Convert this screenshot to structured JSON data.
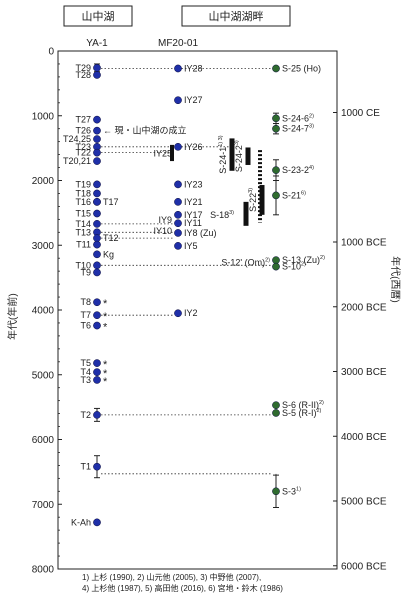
{
  "chart_data": {
    "type": "scatter",
    "headers": {
      "left": "山中湖",
      "right": "山中湖湖畔"
    },
    "columns": {
      "ya": "YA-1",
      "mf": "MF20-01"
    },
    "ylabel_left": "年代(年前)",
    "ylabel_right": "年代(西暦)",
    "ylim": [
      0,
      8000
    ],
    "left_ticks": [
      0,
      1000,
      2000,
      3000,
      4000,
      5000,
      6000,
      7000,
      8000
    ],
    "right_ticks": [
      {
        "bp": 950,
        "label": "1000 CE"
      },
      {
        "bp": 2950,
        "label": "1000 BCE"
      },
      {
        "bp": 3950,
        "label": "2000 BCE"
      },
      {
        "bp": 4950,
        "label": "3000 BCE"
      },
      {
        "bp": 5950,
        "label": "4000 BCE"
      },
      {
        "bp": 6950,
        "label": "5000 BCE"
      },
      {
        "bp": 7950,
        "label": "6000 BCE"
      }
    ],
    "ya1_points": [
      {
        "label": "T29",
        "y": 260,
        "err": 60
      },
      {
        "label": "T28",
        "y": 370
      },
      {
        "label": "T27",
        "y": 1060
      },
      {
        "label": "T26",
        "y": 1230
      },
      {
        "label": "T24,25",
        "y": 1360
      },
      {
        "label": "T23",
        "y": 1480
      },
      {
        "label": "T22",
        "y": 1570
      },
      {
        "label": "T20,21",
        "y": 1700
      },
      {
        "label": "T19",
        "y": 2060
      },
      {
        "label": "T18",
        "y": 2200
      },
      {
        "label": "T16",
        "y": 2330
      },
      {
        "label": "T17",
        "y": 2330,
        "label_right": true
      },
      {
        "label": "T15",
        "y": 2510
      },
      {
        "label": "T14",
        "y": 2670
      },
      {
        "label": "T13",
        "y": 2800
      },
      {
        "label": "T12",
        "y": 2890,
        "label_right": true
      },
      {
        "label": "T11",
        "y": 2990
      },
      {
        "label": "Kg",
        "y": 3140,
        "label_right": true
      },
      {
        "label": "T10",
        "y": 3310
      },
      {
        "label": "T9",
        "y": 3420
      },
      {
        "label": "T8",
        "y": 3880,
        "star": true
      },
      {
        "label": "T7",
        "y": 4080,
        "star": true
      },
      {
        "label": "T6",
        "y": 4240,
        "star": true
      },
      {
        "label": "T5",
        "y": 4820,
        "star": true
      },
      {
        "label": "T4",
        "y": 4960,
        "star": true
      },
      {
        "label": "T3",
        "y": 5080,
        "star": true
      },
      {
        "label": "T2",
        "y": 5620,
        "err": 100
      },
      {
        "label": "T1",
        "y": 6420,
        "err": 170
      },
      {
        "label": "K-Ah",
        "y": 7280
      }
    ],
    "mf20_points": [
      {
        "label": "IY28",
        "y": 270
      },
      {
        "label": "IY27",
        "y": 760
      },
      {
        "label": "IY26",
        "y": 1480
      },
      {
        "label": "IY23",
        "y": 2060
      },
      {
        "label": "IY21",
        "y": 2330
      },
      {
        "label": "IY17",
        "y": 2530
      },
      {
        "label": "IY11",
        "y": 2660
      },
      {
        "label": "IY8 (Zu)",
        "y": 2810
      },
      {
        "label": "IY5",
        "y": 3010
      },
      {
        "label": "IY2",
        "y": 4050
      }
    ],
    "left_side_labels": [
      {
        "label": "IY25",
        "y": 1580
      },
      {
        "label": "IY9",
        "y": 2610
      },
      {
        "label": "IY10",
        "y": 2780
      }
    ],
    "annotation": {
      "text": "← 現・山中湖の成立",
      "y": 1230
    },
    "lakeside_points": [
      {
        "label": "S-25 (Ho)",
        "y": 270
      },
      {
        "label": "S-24-6",
        "sup": "2)",
        "y": 1040,
        "err": 80
      },
      {
        "label": "S-24-7",
        "sup": "3)",
        "y": 1200,
        "err": 80
      },
      {
        "label": "S-23-2",
        "sup": "4)",
        "y": 1840,
        "err": 160
      },
      {
        "label": "S-21",
        "sup": "6)",
        "y": 2230,
        "err": 300
      },
      {
        "label": "S-13 (Zu)",
        "sup": "2)",
        "y": 3230
      },
      {
        "label": "S-10",
        "sup": "2)",
        "y": 3330
      },
      {
        "label": "S-6 (R-II)",
        "sup": "2)",
        "y": 5470
      },
      {
        "label": "S-5 (R-I)",
        "sup": "2)",
        "y": 5590
      },
      {
        "label": "S-3",
        "sup": "1)",
        "y": 6800,
        "err": 250
      }
    ],
    "side_label_12": {
      "label": "S-12' (Om)",
      "sup": "2)",
      "y": 3270
    },
    "range_bars": [
      {
        "label": "S-24-1",
        "sup": "1) 3)",
        "top": 1350,
        "bottom": 1850,
        "style": "solid"
      },
      {
        "label": "S-24-2",
        "sup": "3)",
        "top": 1490,
        "bottom": 1760,
        "style": "solid"
      },
      {
        "label": "",
        "top": 1530,
        "bottom": 2650,
        "style": "dashed"
      },
      {
        "label": "S-22",
        "sup": "3)",
        "top": 2070,
        "bottom": 2530,
        "style": "solid"
      },
      {
        "label": "S-18",
        "sup": "3)",
        "top": 2330,
        "bottom": 2700,
        "style": "solid"
      }
    ],
    "dotted_links": [
      {
        "y": 270,
        "from": "ya",
        "to": "lake"
      },
      {
        "y": 1480,
        "from": "ya",
        "to": "bar"
      },
      {
        "y": 1570,
        "from": "ya",
        "to": "mf"
      },
      {
        "y": 2670,
        "from": "ya",
        "to": "mf"
      },
      {
        "y": 2800,
        "from": "ya",
        "to": "mf"
      },
      {
        "y": 2890,
        "from": "ya",
        "to": "mf"
      },
      {
        "y": 3310,
        "from": "ya",
        "to": "lake"
      },
      {
        "y": 4080,
        "from": "ya",
        "to": "mf"
      },
      {
        "y": 5620,
        "from": "ya",
        "to": "lake"
      },
      {
        "y": 6530,
        "from": "ya",
        "to": "lake"
      }
    ],
    "footnote_lines": [
      "1) 上杉 (1990), 2) 山元他 (2005), 3) 中野他 (2007),",
      "4) 上杉他 (1987), 5) 高田他 (2016), 6) 宮地・鈴木 (1986)"
    ],
    "colors": {
      "ya1": "#1f2fa8",
      "mf20": "#1f2fa8",
      "lakeside": "#2f6b2f",
      "axis": "#222222"
    }
  }
}
